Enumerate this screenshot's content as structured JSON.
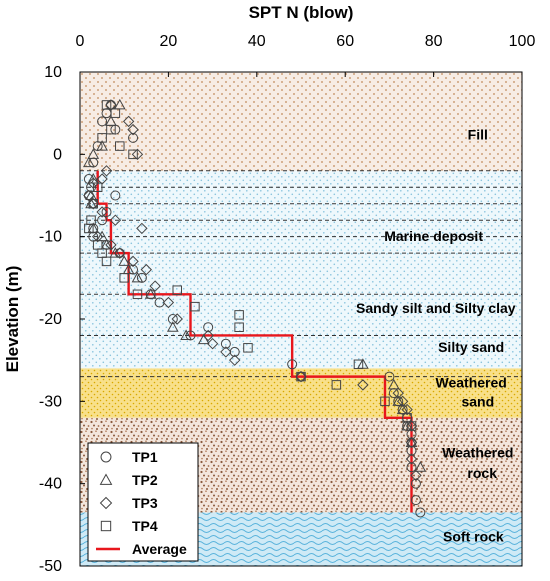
{
  "chart_data": {
    "type": "scatter",
    "title": "",
    "xlabel": "SPT N (blow)",
    "ylabel": "Elevation (m)",
    "x_axis_position": "top",
    "xlim": [
      0,
      100
    ],
    "ylim": [
      -50,
      10
    ],
    "xticks": [
      "0",
      "20",
      "40",
      "60",
      "80",
      "100"
    ],
    "yticks": [
      "10",
      "0",
      "-10",
      "-20",
      "-30",
      "-40",
      "-50"
    ],
    "grid": false,
    "legend_position": "bottom-left",
    "layers": [
      {
        "name": "Fill",
        "top": 10,
        "bottom": -2,
        "pattern": "dots",
        "color": "#c08a5a",
        "background": "#f7ece4"
      },
      {
        "name": "Marine deposit",
        "top": -2,
        "bottom": -12,
        "pattern": "dots",
        "color": "#88c3dc",
        "background": "#eef8fc"
      },
      {
        "name": "Sandy silt and Silty clay",
        "top": -12,
        "bottom": -22,
        "pattern": "dots",
        "color": "#88c3dc",
        "background": "#eef8fc"
      },
      {
        "name": "Silty sand",
        "top": -22,
        "bottom": -26,
        "pattern": "dots",
        "color": "#88c3dc",
        "background": "#eef8fc"
      },
      {
        "name": "Weathered sand",
        "top": -26,
        "bottom": -32,
        "pattern": "dots",
        "color": "#d9a900",
        "background": "#f8e08a"
      },
      {
        "name": "Weathered rock",
        "top": -32,
        "bottom": -43.5,
        "pattern": "speckle",
        "color": "#8a5a3c",
        "background": "#f3e6dc"
      },
      {
        "name": "Soft rock",
        "top": -43.5,
        "bottom": -50,
        "pattern": "waves",
        "color": "#59b3dc",
        "background": "#cfeaf6"
      }
    ],
    "layer_labels": [
      {
        "text": "Fill",
        "x": 90,
        "y": 1.8
      },
      {
        "text": "Marine deposit",
        "x": 80,
        "y": -10.5
      },
      {
        "text": "Sandy silt and Silty clay",
        "x": 80.5,
        "y": -19.3
      },
      {
        "text": "Silty sand",
        "x": 88.5,
        "y": -24.0
      },
      {
        "text": "Weathered",
        "x": 88.5,
        "y": -28.3
      },
      {
        "text": "sand",
        "x": 90,
        "y": -30.6
      },
      {
        "text": "Weathered",
        "x": 90,
        "y": -36.8
      },
      {
        "text": "rock",
        "x": 91,
        "y": -39.3
      },
      {
        "text": "Soft rock",
        "x": 89,
        "y": -47.0
      }
    ],
    "dashed_lines_y": [
      -2,
      -4,
      -6,
      -8,
      -10,
      -12,
      -17,
      -22,
      -27
    ],
    "series": [
      {
        "name": "TP1",
        "marker": "circle",
        "x": [
          7,
          6,
          5,
          8,
          12,
          4,
          3,
          2,
          2.5,
          2,
          3,
          6,
          8,
          5,
          3,
          3,
          6,
          9,
          12,
          14,
          16,
          18,
          21,
          25,
          29,
          33,
          35,
          48,
          50,
          70,
          71,
          72,
          73,
          74,
          74,
          75,
          75,
          75,
          75,
          76,
          76,
          77
        ],
        "y": [
          6,
          5,
          4,
          3,
          2,
          1,
          -1,
          -3,
          -4,
          -5,
          -6,
          -7,
          -5,
          -8,
          -9,
          -10,
          -11,
          -12,
          -14,
          -15,
          -17,
          -18,
          -20,
          -22,
          -21,
          -23,
          -24,
          -25.5,
          -27,
          -27,
          -29,
          -30,
          -31,
          -32,
          -33,
          -34,
          -35,
          -36,
          -38,
          -40,
          -42,
          -43.5
        ]
      },
      {
        "name": "TP2",
        "marker": "triangle",
        "x": [
          9,
          7,
          5,
          3,
          2,
          3,
          2.5,
          2.5,
          3,
          5,
          6,
          8,
          10,
          11,
          13,
          16,
          21,
          24,
          28,
          64,
          71,
          72,
          73,
          74,
          75,
          77
        ],
        "y": [
          6,
          4,
          1,
          0,
          -1,
          -3,
          -5,
          -6,
          -9,
          -10,
          -11,
          -12,
          -13,
          -14,
          -15,
          -17,
          -21,
          -22,
          -22.5,
          -25.5,
          -28,
          -30,
          -31,
          -33,
          -35,
          -38
        ]
      },
      {
        "name": "TP3",
        "marker": "diamond",
        "x": [
          7,
          11,
          12,
          13,
          6,
          5,
          3,
          2,
          3,
          5,
          8,
          14,
          4,
          7,
          9,
          12,
          15,
          17,
          20,
          22,
          29,
          30,
          33,
          35,
          50,
          64,
          72,
          73,
          74,
          75,
          75,
          75,
          76
        ],
        "y": [
          6,
          4,
          3,
          0,
          -2,
          -3,
          -3.5,
          -5,
          -6,
          -7,
          -8,
          -9,
          -10,
          -11,
          -12,
          -13,
          -14,
          -16,
          -18,
          -20,
          -22,
          -23,
          -24,
          -25,
          -27,
          -28,
          -29,
          -30,
          -31,
          -33,
          -35,
          -37,
          -39
        ]
      },
      {
        "name": "TP4",
        "marker": "square",
        "x": [
          6,
          8,
          7,
          5,
          9,
          12,
          4,
          3,
          2.5,
          2,
          4,
          5,
          6,
          10,
          13,
          22,
          26,
          36,
          36,
          38,
          50,
          58,
          63,
          69,
          74,
          75
        ],
        "y": [
          6,
          5,
          3,
          2,
          1,
          0,
          -4,
          -6,
          -8,
          -9,
          -11,
          -12,
          -13,
          -15,
          -17,
          -16.5,
          -18.5,
          -19.5,
          -21,
          -23.5,
          -27,
          -28,
          -25.5,
          -30,
          -32,
          -33
        ]
      },
      {
        "name": "Average",
        "marker": "line",
        "color": "#e8161c",
        "x": [
          4,
          4,
          6,
          6,
          7,
          7,
          11,
          11,
          25,
          25,
          48,
          48,
          69,
          69,
          75,
          75
        ],
        "y": [
          -2,
          -6,
          -6,
          -8,
          -8,
          -12,
          -12,
          -17,
          -17,
          -22,
          -22,
          -27,
          -27,
          -32,
          -32,
          -43.5
        ]
      }
    ]
  },
  "colors": {
    "axis": "#000000",
    "marker_stroke": "#444444",
    "average_line": "#e8161c",
    "dashed_line": "#333333"
  }
}
